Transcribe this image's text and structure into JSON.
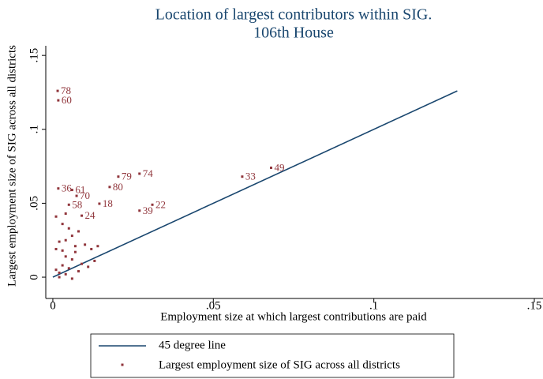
{
  "chart_data": {
    "type": "scatter",
    "title": [
      "Location of largest contributors within SIG.",
      "106th House"
    ],
    "xlabel": "Employment size at which largest contributions are paid",
    "ylabel": "Largest employment size of SIG across all districts",
    "xlim": [
      -0.0022,
      0.1527
    ],
    "ylim": [
      -0.0144,
      0.1565
    ],
    "xticks": [
      0,
      {
        "value": 0.05,
        "label": ".05"
      },
      {
        "value": 0.1,
        "label": ".1"
      },
      {
        "value": 0.15,
        "label": ".15"
      }
    ],
    "yticks": [
      0,
      {
        "value": 0.05,
        "label": ".05"
      },
      {
        "value": 0.1,
        "label": ".1"
      },
      {
        "value": 0.15,
        "label": ".15"
      }
    ],
    "series": [
      {
        "name": "45 degree line",
        "type": "line",
        "color": "#1a476f",
        "x": [
          0,
          0.126
        ],
        "values": [
          0,
          0.126
        ]
      },
      {
        "name": "Largest employment size of SIG across all districts",
        "type": "scatter",
        "color": "#90353b",
        "x": [
          0.0015,
          0.0017,
          0.0017,
          0.006,
          0.0074,
          0.0177,
          0.0204,
          0.027,
          0.059,
          0.068,
          0.0145,
          0.031,
          0.027,
          0.005,
          0.009,
          0.001,
          0.002,
          0.003,
          0.004,
          0.005,
          0.006,
          0.003,
          0.001,
          0.007,
          0.004,
          0.006,
          0.008,
          0.005,
          0.003,
          0.001,
          0.004,
          0.007,
          0.01,
          0.012,
          0.014,
          0.009,
          0.011,
          0.002,
          0.006,
          0.008,
          0.013,
          0.004,
          0.002
        ],
        "values": [
          0.126,
          0.1196,
          0.06,
          0.059,
          0.055,
          0.061,
          0.068,
          0.07,
          0.068,
          0.074,
          0.0497,
          0.049,
          0.045,
          0.049,
          0.0416,
          0.005,
          0.003,
          0.008,
          0.002,
          0.006,
          0.012,
          0.018,
          0.019,
          0.017,
          0.025,
          0.028,
          0.031,
          0.033,
          0.036,
          0.041,
          0.043,
          0.021,
          0.022,
          0.019,
          0.021,
          0.009,
          0.007,
          0.0,
          -0.001,
          0.004,
          0.011,
          0.014,
          0.024
        ],
        "labels": [
          "78",
          "60",
          "36",
          "61",
          "70",
          "80",
          "79",
          "74",
          "33",
          "49",
          "18",
          "22",
          "39",
          "58",
          "24",
          null,
          null,
          null,
          null,
          null,
          null,
          null,
          null,
          null,
          null,
          null,
          null,
          null,
          null,
          null,
          null,
          null,
          null,
          null,
          null,
          null,
          null,
          null,
          null,
          null,
          null,
          null,
          null
        ]
      }
    ]
  }
}
